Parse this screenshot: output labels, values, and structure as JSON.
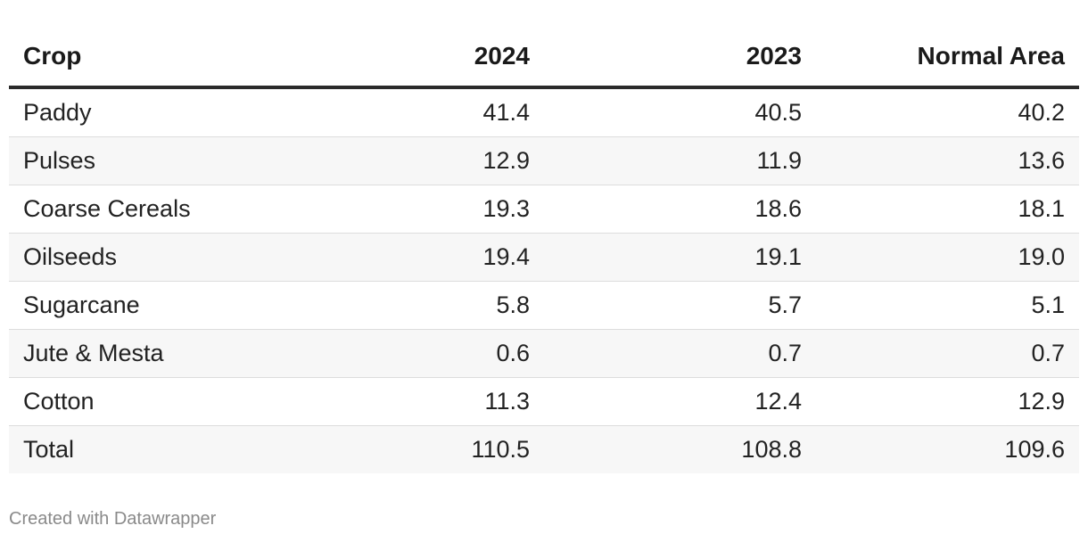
{
  "chart_data": {
    "type": "table",
    "columns": [
      "Crop",
      "2024",
      "2023",
      "Normal Area"
    ],
    "rows": [
      [
        "Paddy",
        "41.4",
        "40.5",
        "40.2"
      ],
      [
        "Pulses",
        "12.9",
        "11.9",
        "13.6"
      ],
      [
        "Coarse Cereals",
        "19.3",
        "18.6",
        "18.1"
      ],
      [
        "Oilseeds",
        "19.4",
        "19.1",
        "19.0"
      ],
      [
        "Sugarcane",
        "5.8",
        "5.7",
        "5.1"
      ],
      [
        "Jute & Mesta",
        "0.6",
        "0.7",
        "0.7"
      ],
      [
        "Cotton",
        "11.3",
        "12.4",
        "12.9"
      ],
      [
        "Total",
        "110.5",
        "108.8",
        "109.6"
      ]
    ]
  },
  "footer": {
    "credit": "Created with Datawrapper"
  },
  "colors": {
    "header_rule": "#2a2a2a",
    "row_stripe": "#f7f7f7",
    "row_divider": "#dddddd",
    "credit_text": "#8a8a8a"
  }
}
